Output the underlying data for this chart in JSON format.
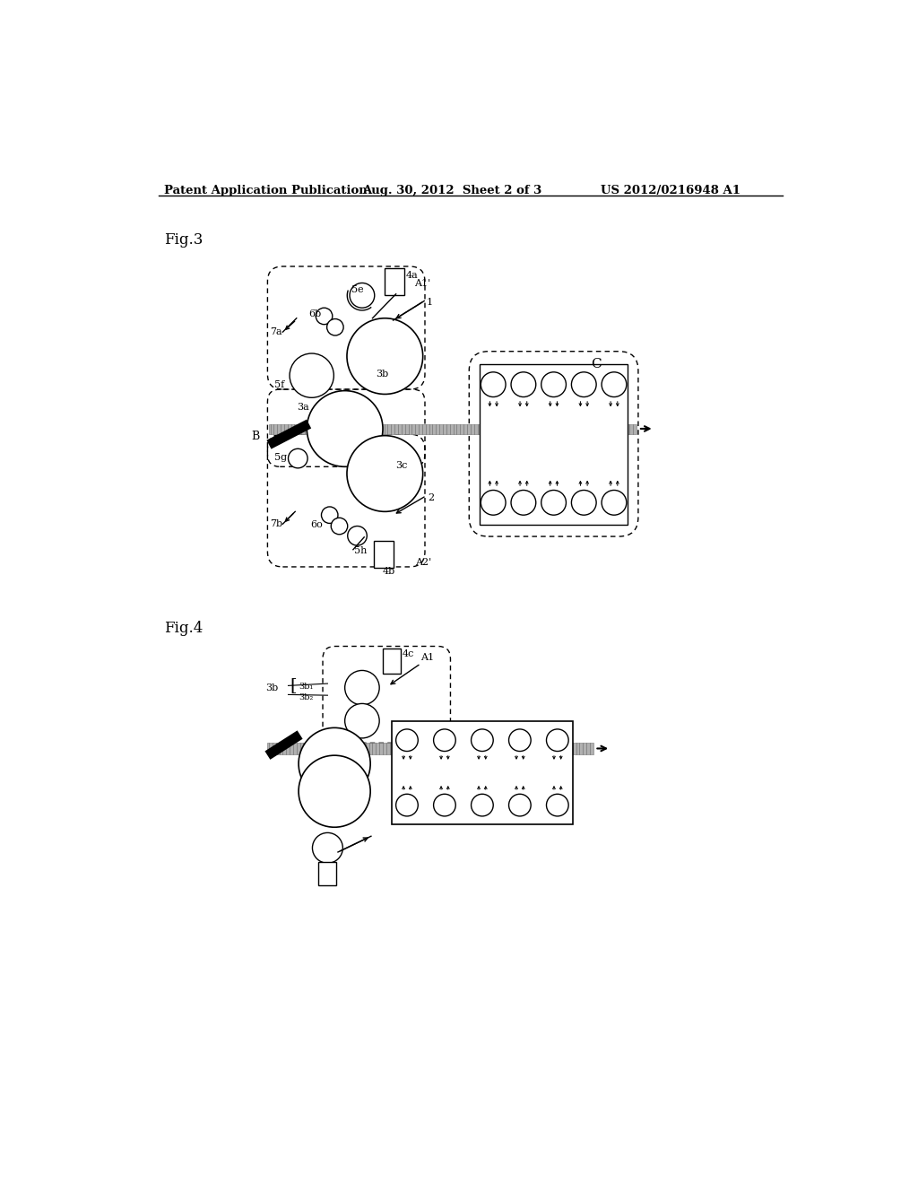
{
  "header_left": "Patent Application Publication",
  "header_middle": "Aug. 30, 2012  Sheet 2 of 3",
  "header_right": "US 2012/0216948 A1",
  "fig3_label": "Fig.3",
  "fig4_label": "Fig.4",
  "bg_color": "#ffffff",
  "line_color": "#000000"
}
